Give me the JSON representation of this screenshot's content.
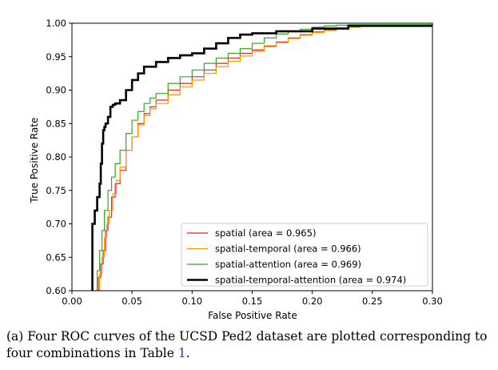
{
  "chart_data": {
    "type": "line",
    "title": "",
    "xlabel": "False Positive Rate",
    "ylabel": "True Positive Rate",
    "xlim": [
      0.0,
      0.3
    ],
    "ylim": [
      0.6,
      1.0
    ],
    "xticks": [
      "0.00",
      "0.05",
      "0.10",
      "0.15",
      "0.20",
      "0.25",
      "0.30"
    ],
    "yticks": [
      "0.60",
      "0.65",
      "0.70",
      "0.75",
      "0.80",
      "0.85",
      "0.90",
      "0.95",
      "1.00"
    ],
    "legend_position": "lower-right",
    "series": [
      {
        "name": "spatial (area = 0.965)",
        "color": "#ee2222",
        "width": 1.2,
        "x": [
          0.019,
          0.022,
          0.024,
          0.026,
          0.028,
          0.03,
          0.033,
          0.036,
          0.04,
          0.045,
          0.05,
          0.055,
          0.06,
          0.065,
          0.07,
          0.08,
          0.09,
          0.1,
          0.11,
          0.12,
          0.13,
          0.14,
          0.15,
          0.16,
          0.17,
          0.18,
          0.19,
          0.2,
          0.21,
          0.22,
          0.23,
          0.24,
          0.3
        ],
        "y": [
          0.6,
          0.62,
          0.64,
          0.66,
          0.69,
          0.71,
          0.74,
          0.76,
          0.78,
          0.81,
          0.83,
          0.85,
          0.865,
          0.875,
          0.885,
          0.9,
          0.91,
          0.92,
          0.93,
          0.94,
          0.948,
          0.955,
          0.96,
          0.966,
          0.972,
          0.978,
          0.983,
          0.987,
          0.99,
          0.993,
          0.995,
          0.997,
          0.998
        ]
      },
      {
        "name": "spatial-temporal (area = 0.966)",
        "color": "#ff9900",
        "width": 1.2,
        "x": [
          0.02,
          0.023,
          0.025,
          0.027,
          0.029,
          0.031,
          0.034,
          0.037,
          0.04,
          0.045,
          0.05,
          0.055,
          0.06,
          0.065,
          0.07,
          0.08,
          0.09,
          0.1,
          0.11,
          0.12,
          0.13,
          0.14,
          0.15,
          0.16,
          0.17,
          0.18,
          0.19,
          0.2,
          0.21,
          0.22,
          0.23,
          0.24,
          0.3
        ],
        "y": [
          0.6,
          0.625,
          0.65,
          0.68,
          0.7,
          0.72,
          0.745,
          0.765,
          0.785,
          0.81,
          0.83,
          0.848,
          0.862,
          0.872,
          0.88,
          0.893,
          0.905,
          0.915,
          0.925,
          0.935,
          0.943,
          0.951,
          0.958,
          0.965,
          0.971,
          0.977,
          0.982,
          0.986,
          0.989,
          0.992,
          0.994,
          0.996,
          0.997
        ]
      },
      {
        "name": "spatial-attention (area = 0.969)",
        "color": "#33aa22",
        "width": 1.2,
        "x": [
          0.019,
          0.021,
          0.023,
          0.025,
          0.027,
          0.03,
          0.033,
          0.036,
          0.04,
          0.045,
          0.05,
          0.055,
          0.06,
          0.065,
          0.07,
          0.08,
          0.09,
          0.1,
          0.11,
          0.12,
          0.13,
          0.14,
          0.15,
          0.16,
          0.17,
          0.18,
          0.19,
          0.2,
          0.21,
          0.22,
          0.23,
          0.3
        ],
        "y": [
          0.6,
          0.63,
          0.66,
          0.69,
          0.72,
          0.75,
          0.77,
          0.79,
          0.81,
          0.835,
          0.855,
          0.868,
          0.88,
          0.888,
          0.895,
          0.91,
          0.92,
          0.93,
          0.94,
          0.948,
          0.955,
          0.962,
          0.97,
          0.978,
          0.984,
          0.988,
          0.991,
          0.994,
          0.996,
          0.997,
          0.998,
          0.999
        ]
      },
      {
        "name": "spatial-temporal-attention (area = 0.974)",
        "color": "#000000",
        "width": 2.6,
        "x": [
          0.017,
          0.017,
          0.019,
          0.021,
          0.023,
          0.024,
          0.025,
          0.026,
          0.027,
          0.028,
          0.03,
          0.032,
          0.034,
          0.036,
          0.04,
          0.045,
          0.05,
          0.055,
          0.06,
          0.07,
          0.08,
          0.09,
          0.1,
          0.11,
          0.12,
          0.13,
          0.14,
          0.15,
          0.17,
          0.2,
          0.23,
          0.3
        ],
        "y": [
          0.6,
          0.7,
          0.72,
          0.74,
          0.76,
          0.79,
          0.82,
          0.84,
          0.845,
          0.85,
          0.86,
          0.875,
          0.878,
          0.88,
          0.885,
          0.9,
          0.915,
          0.925,
          0.935,
          0.942,
          0.948,
          0.952,
          0.955,
          0.962,
          0.97,
          0.978,
          0.983,
          0.985,
          0.988,
          0.992,
          0.996,
          0.998
        ]
      }
    ]
  },
  "caption": {
    "text_before": "(a) Four ROC curves of the UCSD Ped2 dataset are plotted corresponding to four combinations in Table ",
    "table_ref": "1",
    "text_after": "."
  }
}
